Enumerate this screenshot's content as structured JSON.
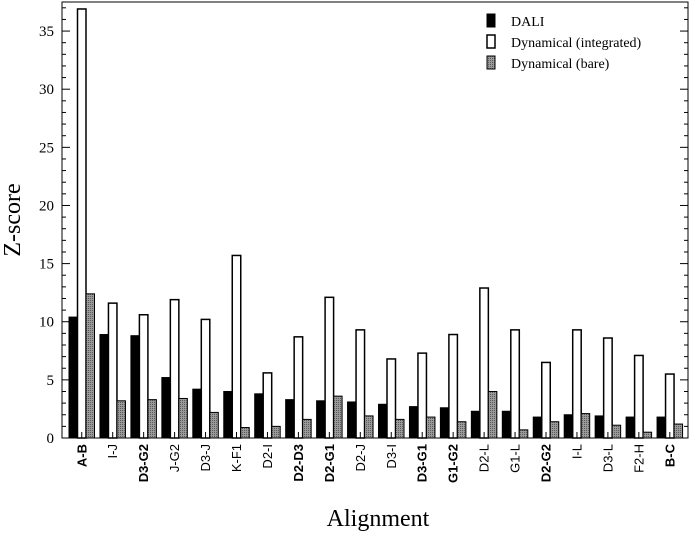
{
  "chart_data": {
    "type": "bar",
    "title": "",
    "xlabel": "Alignment",
    "ylabel": "Z-score",
    "ylim": [
      0,
      37.5
    ],
    "yticks": [
      0,
      5,
      10,
      15,
      20,
      25,
      30,
      35
    ],
    "grid": false,
    "legend_position": "top-right",
    "categories": [
      "A-B",
      "I-J",
      "D3-G2",
      "J-G2",
      "D3-J",
      "K-F1",
      "D2-I",
      "D2-D3",
      "D2-G1",
      "D2-J",
      "D3-I",
      "D3-G1",
      "G1-G2",
      "D2-L",
      "G1-L",
      "D2-G2",
      "I-L",
      "D3-L",
      "F2-H",
      "B-C"
    ],
    "bold_categories": [
      "A-B",
      "D3-G2",
      "D2-D3",
      "D2-G1",
      "D3-G1",
      "G1-G2",
      "D2-G2",
      "B-C"
    ],
    "series": [
      {
        "name": "DALI",
        "color": "#000000",
        "values": [
          10.4,
          8.9,
          8.8,
          5.2,
          4.2,
          4.0,
          3.8,
          3.3,
          3.2,
          3.1,
          2.9,
          2.7,
          2.6,
          2.3,
          2.3,
          1.8,
          2.0,
          1.9,
          1.8,
          1.8
        ]
      },
      {
        "name": "Dynamical (integrated)",
        "color": "#ffffff",
        "values": [
          36.9,
          11.6,
          10.6,
          11.9,
          10.2,
          15.7,
          5.6,
          8.7,
          12.1,
          9.3,
          6.8,
          7.3,
          8.9,
          12.9,
          9.3,
          6.5,
          9.3,
          8.6,
          7.1,
          5.5
        ]
      },
      {
        "name": "Dynamical (bare)",
        "color": "#8c8c8c",
        "values": [
          12.4,
          3.2,
          3.3,
          3.4,
          2.2,
          0.9,
          1.0,
          1.6,
          3.6,
          1.9,
          1.6,
          1.8,
          1.4,
          4.0,
          0.7,
          1.4,
          2.1,
          1.1,
          0.5,
          1.2
        ]
      }
    ]
  }
}
